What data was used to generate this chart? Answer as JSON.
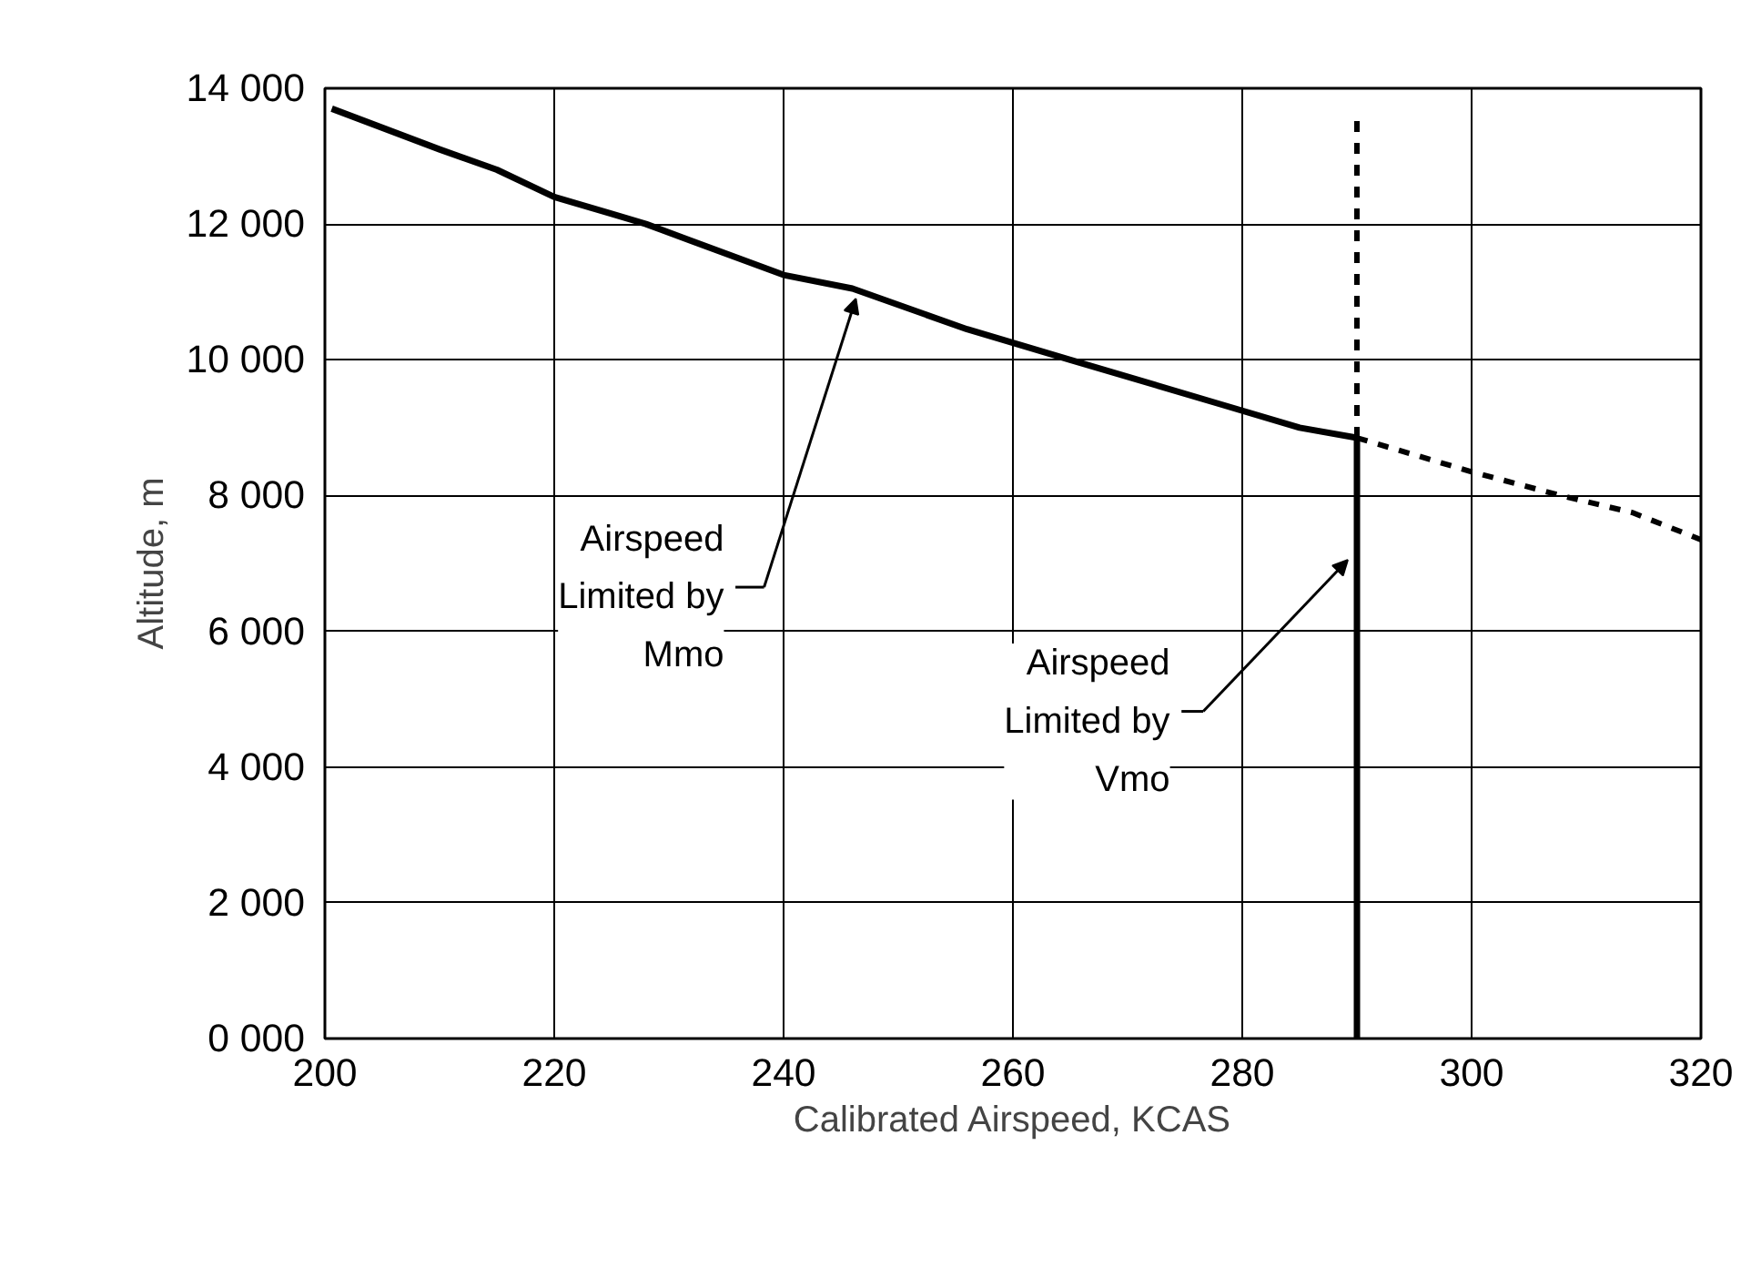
{
  "chart_data": {
    "type": "line",
    "xlabel": "Calibrated Airspeed, KCAS",
    "ylabel": "Altitude, m",
    "xlim": [
      200,
      320
    ],
    "xticks": [
      200,
      220,
      240,
      260,
      280,
      300,
      320
    ],
    "ylim": [
      0,
      14000
    ],
    "yticks": [
      {
        "value": 0,
        "label": "0 000"
      },
      {
        "value": 2000,
        "label": "2 000"
      },
      {
        "value": 4000,
        "label": "4 000"
      },
      {
        "value": 6000,
        "label": "6 000"
      },
      {
        "value": 8000,
        "label": "8 000"
      },
      {
        "value": 10000,
        "label": "10 000"
      },
      {
        "value": 12000,
        "label": "12 000"
      },
      {
        "value": 14000,
        "label": "14 000"
      }
    ],
    "grid": true,
    "marker": "none",
    "series": [
      {
        "color": "#000000",
        "line_style": "solid",
        "x": [
          200.6,
          210,
          215,
          220,
          225,
          228,
          240,
          246,
          256,
          265,
          278,
          285,
          290
        ],
        "values": [
          13700,
          13100,
          12800,
          12400,
          12150,
          12000,
          11250,
          11050,
          10450,
          10000,
          9350,
          9000,
          8850
        ]
      },
      {
        "color": "#000000",
        "line_style": "solid",
        "x": [
          290,
          290
        ],
        "values": [
          0,
          8850
        ]
      },
      {
        "color": "#000000",
        "line_style": "dashed",
        "x": [
          290,
          290
        ],
        "values": [
          8850,
          13600
        ]
      },
      {
        "color": "#000000",
        "line_style": "dashed",
        "x": [
          290,
          300,
          308,
          314,
          320
        ],
        "values": [
          8850,
          8350,
          7990,
          7750,
          7350
        ]
      }
    ],
    "annotations": [
      {
        "text": "Airspeed\nLimited by\nMmo",
        "x": 246.3,
        "y": 10900
      },
      {
        "text": "Airspeed\nLimited by\nVmo",
        "x": 289.2,
        "y": 7050
      }
    ]
  }
}
